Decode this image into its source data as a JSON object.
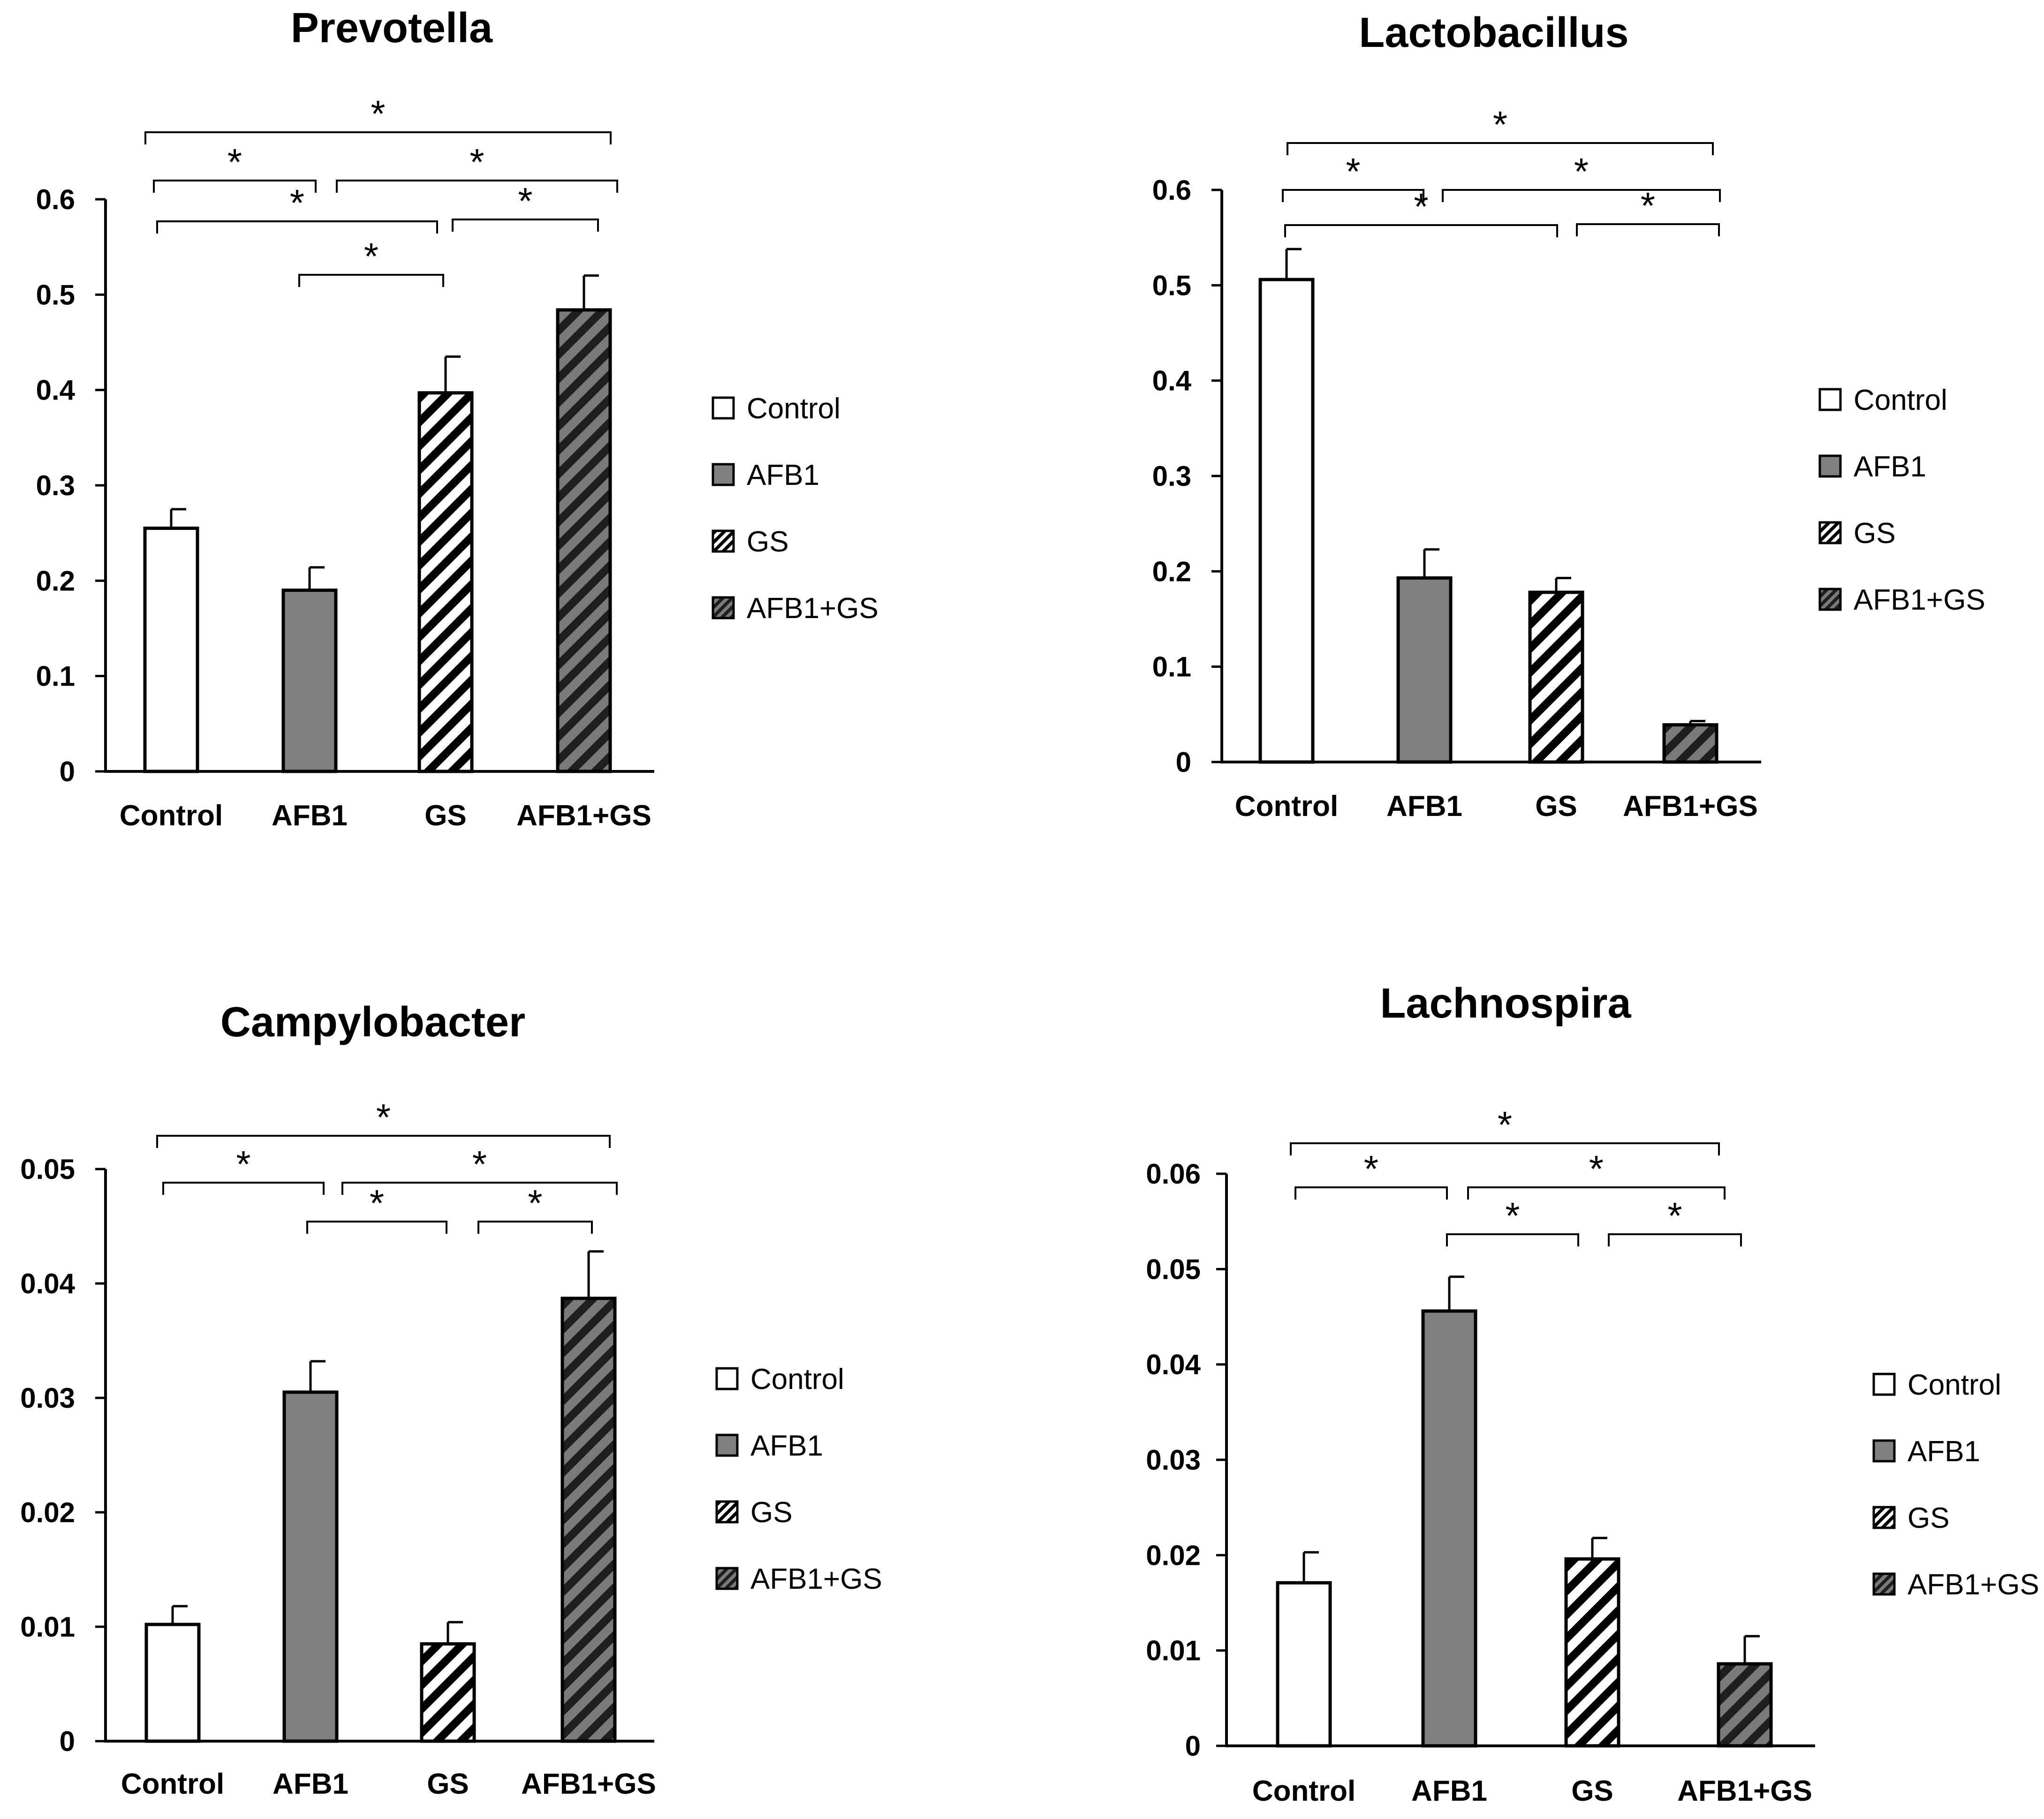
{
  "colors": {
    "control_fill": "#ffffff",
    "afb1_fill": "#808080",
    "gs_stripe": "#000000",
    "combo_fill": "#6d6d6d",
    "stroke": "#000000"
  },
  "chart_data": [
    {
      "type": "bar",
      "title": "Prevotella",
      "categories": [
        "Control",
        "AFB1",
        "GS",
        "AFB1+GS"
      ],
      "values": [
        0.255,
        0.19,
        0.397,
        0.484
      ],
      "errors": [
        0.02,
        0.024,
        0.038,
        0.036
      ],
      "ylim": [
        0,
        0.6
      ],
      "yticks": [
        0,
        0.1,
        0.2,
        0.3,
        0.4,
        0.5,
        0.6
      ],
      "ytick_labels": [
        "0",
        "0.1",
        "0.2",
        "0.3",
        "0.4",
        "0.5",
        "0.6"
      ],
      "legend": [
        "Control",
        "AFB1",
        "GS",
        "AFB1+GS"
      ],
      "significance": [
        {
          "from": 0,
          "to": 3,
          "label": "*"
        },
        {
          "from": 0,
          "to": 1,
          "label": "*"
        },
        {
          "from": 1,
          "to": 3,
          "label": "*"
        },
        {
          "from": 0,
          "to": 2,
          "label": "*"
        },
        {
          "from": 2,
          "to": 3,
          "label": "*"
        },
        {
          "from": 1,
          "to": 2,
          "label": "*"
        }
      ]
    },
    {
      "type": "bar",
      "title": "Lactobacillus",
      "categories": [
        "Control",
        "AFB1",
        "GS",
        "AFB1+GS"
      ],
      "values": [
        0.506,
        0.193,
        0.178,
        0.039
      ],
      "errors": [
        0.032,
        0.03,
        0.015,
        0.004
      ],
      "ylim": [
        0,
        0.6
      ],
      "yticks": [
        0,
        0.1,
        0.2,
        0.3,
        0.4,
        0.5,
        0.6
      ],
      "ytick_labels": [
        "0",
        "0.1",
        "0.2",
        "0.3",
        "0.4",
        "0.5",
        "0.6"
      ],
      "legend": [
        "Control",
        "AFB1",
        "GS",
        "AFB1+GS"
      ],
      "significance": [
        {
          "from": 0,
          "to": 3,
          "label": "*"
        },
        {
          "from": 0,
          "to": 1,
          "label": "*"
        },
        {
          "from": 1,
          "to": 3,
          "label": "*"
        },
        {
          "from": 0,
          "to": 2,
          "label": "*"
        },
        {
          "from": 2,
          "to": 3,
          "label": "*"
        }
      ]
    },
    {
      "type": "bar",
      "title": "Campylobacter",
      "categories": [
        "Control",
        "AFB1",
        "GS",
        "AFB1+GS"
      ],
      "values": [
        0.0102,
        0.0305,
        0.0085,
        0.0387
      ],
      "errors": [
        0.0016,
        0.0027,
        0.0019,
        0.0041
      ],
      "ylim": [
        0,
        0.05
      ],
      "yticks": [
        0,
        0.01,
        0.02,
        0.03,
        0.04,
        0.05
      ],
      "ytick_labels": [
        "0",
        "0.01",
        "0.02",
        "0.03",
        "0.04",
        "0.05"
      ],
      "legend": [
        "Control",
        "AFB1",
        "GS",
        "AFB1+GS"
      ],
      "significance": [
        {
          "from": 0,
          "to": 3,
          "label": "*"
        },
        {
          "from": 0,
          "to": 1,
          "label": "*"
        },
        {
          "from": 1,
          "to": 3,
          "label": "*"
        },
        {
          "from": 1,
          "to": 2,
          "label": "*"
        },
        {
          "from": 2,
          "to": 3,
          "label": "*"
        }
      ]
    },
    {
      "type": "bar",
      "title": "Lachnospira",
      "categories": [
        "Control",
        "AFB1",
        "GS",
        "AFB1+GS"
      ],
      "values": [
        0.0171,
        0.0456,
        0.0196,
        0.0086
      ],
      "errors": [
        0.0032,
        0.0036,
        0.0022,
        0.0029
      ],
      "ylim": [
        0,
        0.06
      ],
      "yticks": [
        0,
        0.01,
        0.02,
        0.03,
        0.04,
        0.05,
        0.06
      ],
      "ytick_labels": [
        "0",
        "0.01",
        "0.02",
        "0.03",
        "0.04",
        "0.05",
        "0.06"
      ],
      "legend": [
        "Control",
        "AFB1",
        "GS",
        "AFB1+GS"
      ],
      "significance": [
        {
          "from": 0,
          "to": 3,
          "label": "*"
        },
        {
          "from": 0,
          "to": 1,
          "label": "*"
        },
        {
          "from": 1,
          "to": 3,
          "label": "*"
        },
        {
          "from": 1,
          "to": 2,
          "label": "*"
        },
        {
          "from": 2,
          "to": 3,
          "label": "*"
        }
      ]
    }
  ]
}
